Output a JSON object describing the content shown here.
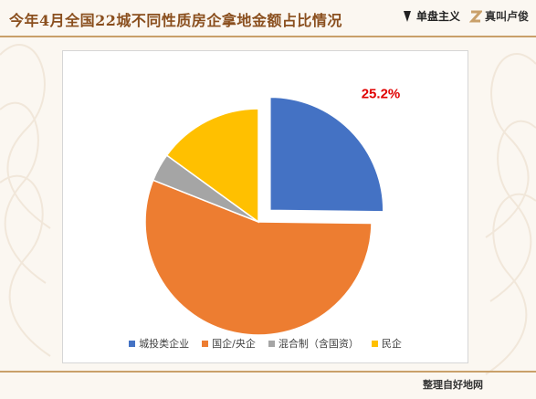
{
  "title": "今年4月全国22城不同性质房企拿地金额占比情况",
  "brands": [
    {
      "label": "单盘主义",
      "icon": "brand-1-icon"
    },
    {
      "label": "真叫卢俊",
      "icon": "brand-2-icon"
    }
  ],
  "footer": "整理自好地网",
  "colors": {
    "accent": "#8a4f1e",
    "rule": "#c9a06a",
    "label_red": "#e00000"
  },
  "chart_data": {
    "type": "pie",
    "title": "",
    "series": [
      {
        "name": "城投类企业",
        "value": 25.2,
        "color": "#4472c4",
        "exploded": true,
        "label": "25.2%"
      },
      {
        "name": "国企/央企",
        "value": 55.8,
        "color": "#ed7d31",
        "exploded": false,
        "label": ""
      },
      {
        "name": "混合制（含国资）",
        "value": 4.0,
        "color": "#a5a5a5",
        "exploded": false,
        "label": ""
      },
      {
        "name": "民企",
        "value": 15.0,
        "color": "#ffc000",
        "exploded": false,
        "label": ""
      }
    ],
    "legend_position": "bottom",
    "start": "12 o'clock",
    "direction": "clockwise"
  }
}
